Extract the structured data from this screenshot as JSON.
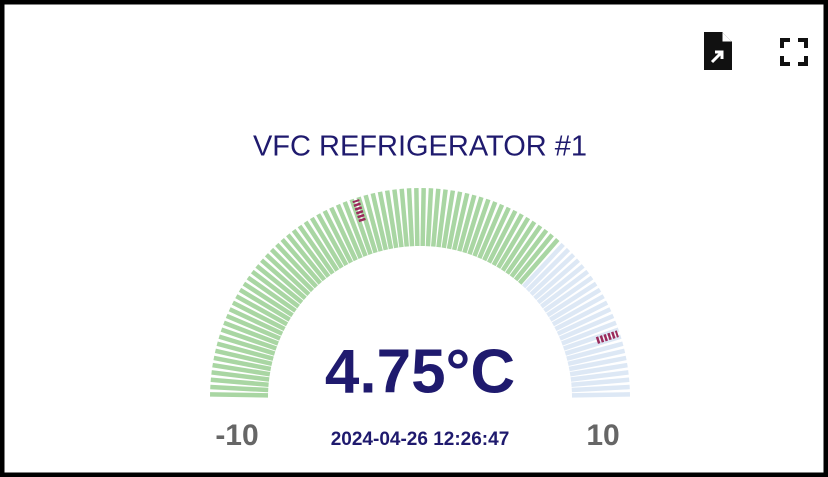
{
  "chart_data": {
    "type": "gauge",
    "title": "VFC REFRIGERATOR #1",
    "value": 4.75,
    "value_label": "4.75°C",
    "timestamp": "2024-04-26 12:26:47",
    "min": -10,
    "max": 10,
    "thresholds": [
      -2,
      8
    ],
    "color": "#a9d6a3",
    "track_color": "#dde8f5",
    "threshold_color": "#9b2b5c"
  }
}
